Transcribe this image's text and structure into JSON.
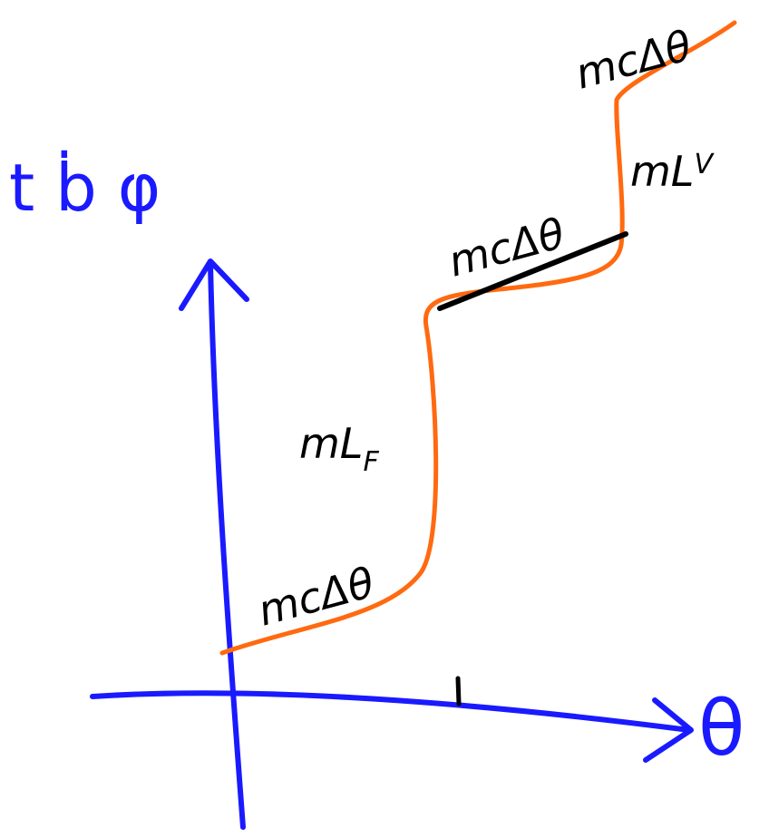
{
  "axis": {
    "y_label": "t ḃ φ",
    "x_label": "θ"
  },
  "segments": [
    {
      "label": "mcΔθ"
    },
    {
      "label": "mL",
      "subscript": "F"
    },
    {
      "label": "mcΔθ"
    },
    {
      "label": "mL",
      "subscript": "V"
    },
    {
      "label": "mcΔθ"
    }
  ]
}
